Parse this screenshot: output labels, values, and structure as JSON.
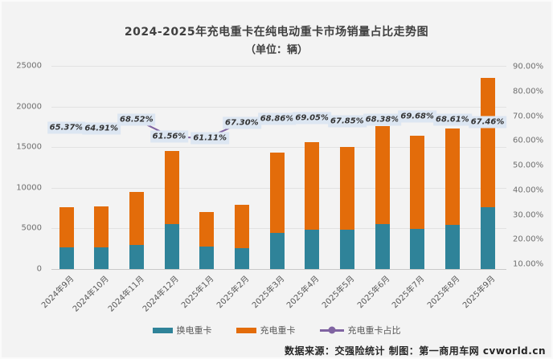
{
  "footer": {
    "text": "数据来源：交强险统计 制图：第一商用车网 cvworld.cn"
  },
  "chart_data": {
    "type": "bar",
    "stacked": true,
    "title": "2024-2025年充电重卡在纯电动重卡市场销量占比走势图",
    "subtitle": "（单位：辆）",
    "categories": [
      "2024年9月",
      "2024年10月",
      "2024年11月",
      "2024年12月",
      "2025年1月",
      "2025年2月",
      "2025年3月",
      "2025年4月",
      "2025年5月",
      "2025年6月",
      "2025年7月",
      "2025年8月",
      "2025年9月"
    ],
    "series": [
      {
        "name": "换电重卡",
        "type": "bar",
        "color": "#2f8399",
        "values": [
          2632,
          2702,
          2991,
          5574,
          2722,
          2583,
          4453,
          4828,
          4822,
          5565,
          4972,
          5430,
          7647
        ]
      },
      {
        "name": "充电重卡",
        "type": "bar",
        "color": "#e36c0a",
        "values": [
          4968,
          4998,
          6509,
          8926,
          4278,
          5317,
          9847,
          10772,
          10178,
          12035,
          11428,
          11870,
          15853
        ]
      },
      {
        "name": "充电重卡占比",
        "type": "line",
        "axis": "right",
        "color": "#8064a2",
        "values": [
          65.37,
          64.91,
          68.52,
          61.56,
          61.11,
          67.3,
          68.86,
          69.05,
          67.85,
          68.38,
          69.68,
          68.61,
          67.46
        ],
        "labels": [
          "65.37%",
          "64.91%",
          "68.52%",
          "61.56%",
          "61.11%",
          "67.30%",
          "68.86%",
          "69.05%",
          "67.85%",
          "68.38%",
          "69.68%",
          "68.61%",
          "67.46%"
        ]
      }
    ],
    "left_axis": {
      "min": 0,
      "max": 25000,
      "tick_values": [
        0,
        5000,
        10000,
        15000,
        20000,
        25000
      ],
      "tick_labels": [
        "0",
        "5000",
        "10000",
        "15000",
        "20000",
        "25000"
      ]
    },
    "right_axis": {
      "min": 10,
      "max": 90,
      "tick_values": [
        10,
        20,
        30,
        40,
        50,
        60,
        70,
        80,
        90
      ],
      "tick_labels": [
        "10.00%",
        "20.00%",
        "30.00%",
        "40.00%",
        "50.00%",
        "60.00%",
        "70.00%",
        "80.00%",
        "90.00%"
      ]
    },
    "grid": true,
    "legend_position": "bottom",
    "label_background": "#dce6f2"
  }
}
